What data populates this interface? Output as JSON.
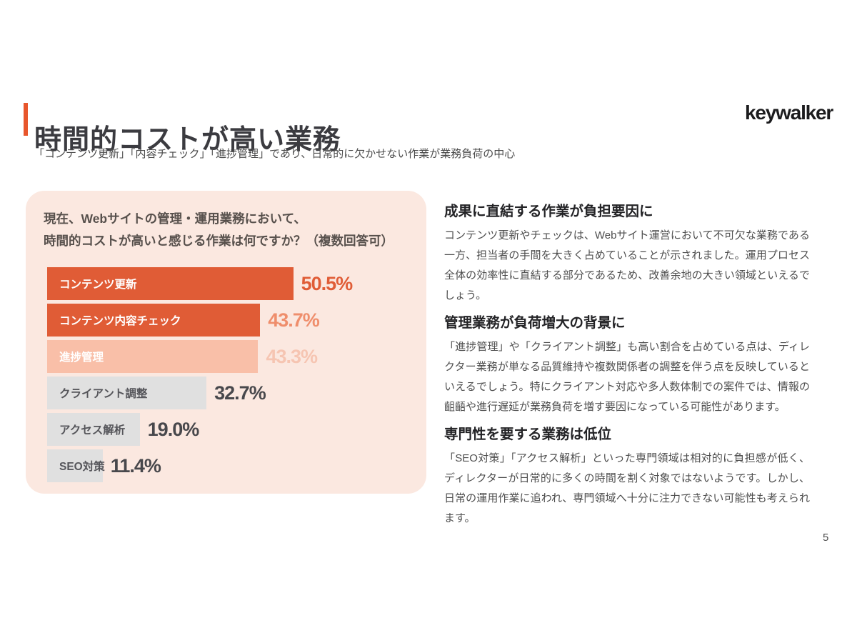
{
  "slide": {
    "background": "#FFFFFF",
    "page_number": "5"
  },
  "logo": {
    "text": "keywalker",
    "color": "#1C1C1E"
  },
  "header": {
    "accent_color": "#E8562C",
    "title": "時間的コストが高い業務",
    "title_color": "#3B3B40",
    "subtitle": "「コンテンツ更新」「内容チェック」「進捗管理」であり、日常的に欠かせない作業が業務負荷の中心"
  },
  "survey_panel": {
    "background": "#FBE8E0",
    "question_line1": "現在、Webサイトの管理・運用業務において、",
    "question_line2": "時間的コストが高いと感じる作業は何ですか？（複数回答可）"
  },
  "chart_data": {
    "type": "bar",
    "orientation": "horizontal",
    "title": "現在、Webサイトの管理・運用業務において、時間的コストが高いと感じる作業は何ですか？（複数回答可）",
    "categories": [
      "コンテンツ更新",
      "コンテンツ内容チェック",
      "進捗管理",
      "クライアント調整",
      "アクセス解析",
      "SEO対策"
    ],
    "values": [
      50.5,
      43.7,
      43.3,
      32.7,
      19.0,
      11.4
    ],
    "value_labels": [
      "50.5%",
      "43.7%",
      "43.3%",
      "32.7%",
      "19.0%",
      "11.4%"
    ],
    "bar_colors": [
      "#E05C36",
      "#E05C36",
      "#F9BFA8",
      "#E0E0E0",
      "#E0E0E0",
      "#E0E0E0"
    ],
    "label_colors": [
      "#FFFFFF",
      "#FFFFFF",
      "#FFFFFF",
      "#55555A",
      "#55555A",
      "#55555A"
    ],
    "value_colors": [
      "#E05C36",
      "#EF8E6C",
      "#F6C5B2",
      "#48484C",
      "#48484C",
      "#48484C"
    ],
    "xlim": [
      0,
      74
    ],
    "grid": false,
    "legend": false
  },
  "sections": [
    {
      "heading": "成果に直結する作業が負担要因に",
      "body": "コンテンツ更新やチェックは、Webサイト運営において不可欠な業務である一方、担当者の手間を大きく占めていることが示されました。運用プロセス全体の効率性に直結する部分であるため、改善余地の大きい領域といえるでしょう。"
    },
    {
      "heading": "管理業務が負荷増大の背景に",
      "body": "「進捗管理」や「クライアント調整」も高い割合を占めている点は、ディレクター業務が単なる品質維持や複数関係者の調整を伴う点を反映しているといえるでしょう。特にクライアント対応や多人数体制での案件では、情報の齟齬や進行遅延が業務負荷を増す要因になっている可能性があります。"
    },
    {
      "heading": "専門性を要する業務は低位",
      "body": "「SEO対策」「アクセス解析」といった専門領域は相対的に負担感が低く、ディレクターが日常的に多くの時間を割く対象ではないようです。しかし、日常の運用作業に追われ、専門領域へ十分に注力できない可能性も考えられます。"
    }
  ]
}
